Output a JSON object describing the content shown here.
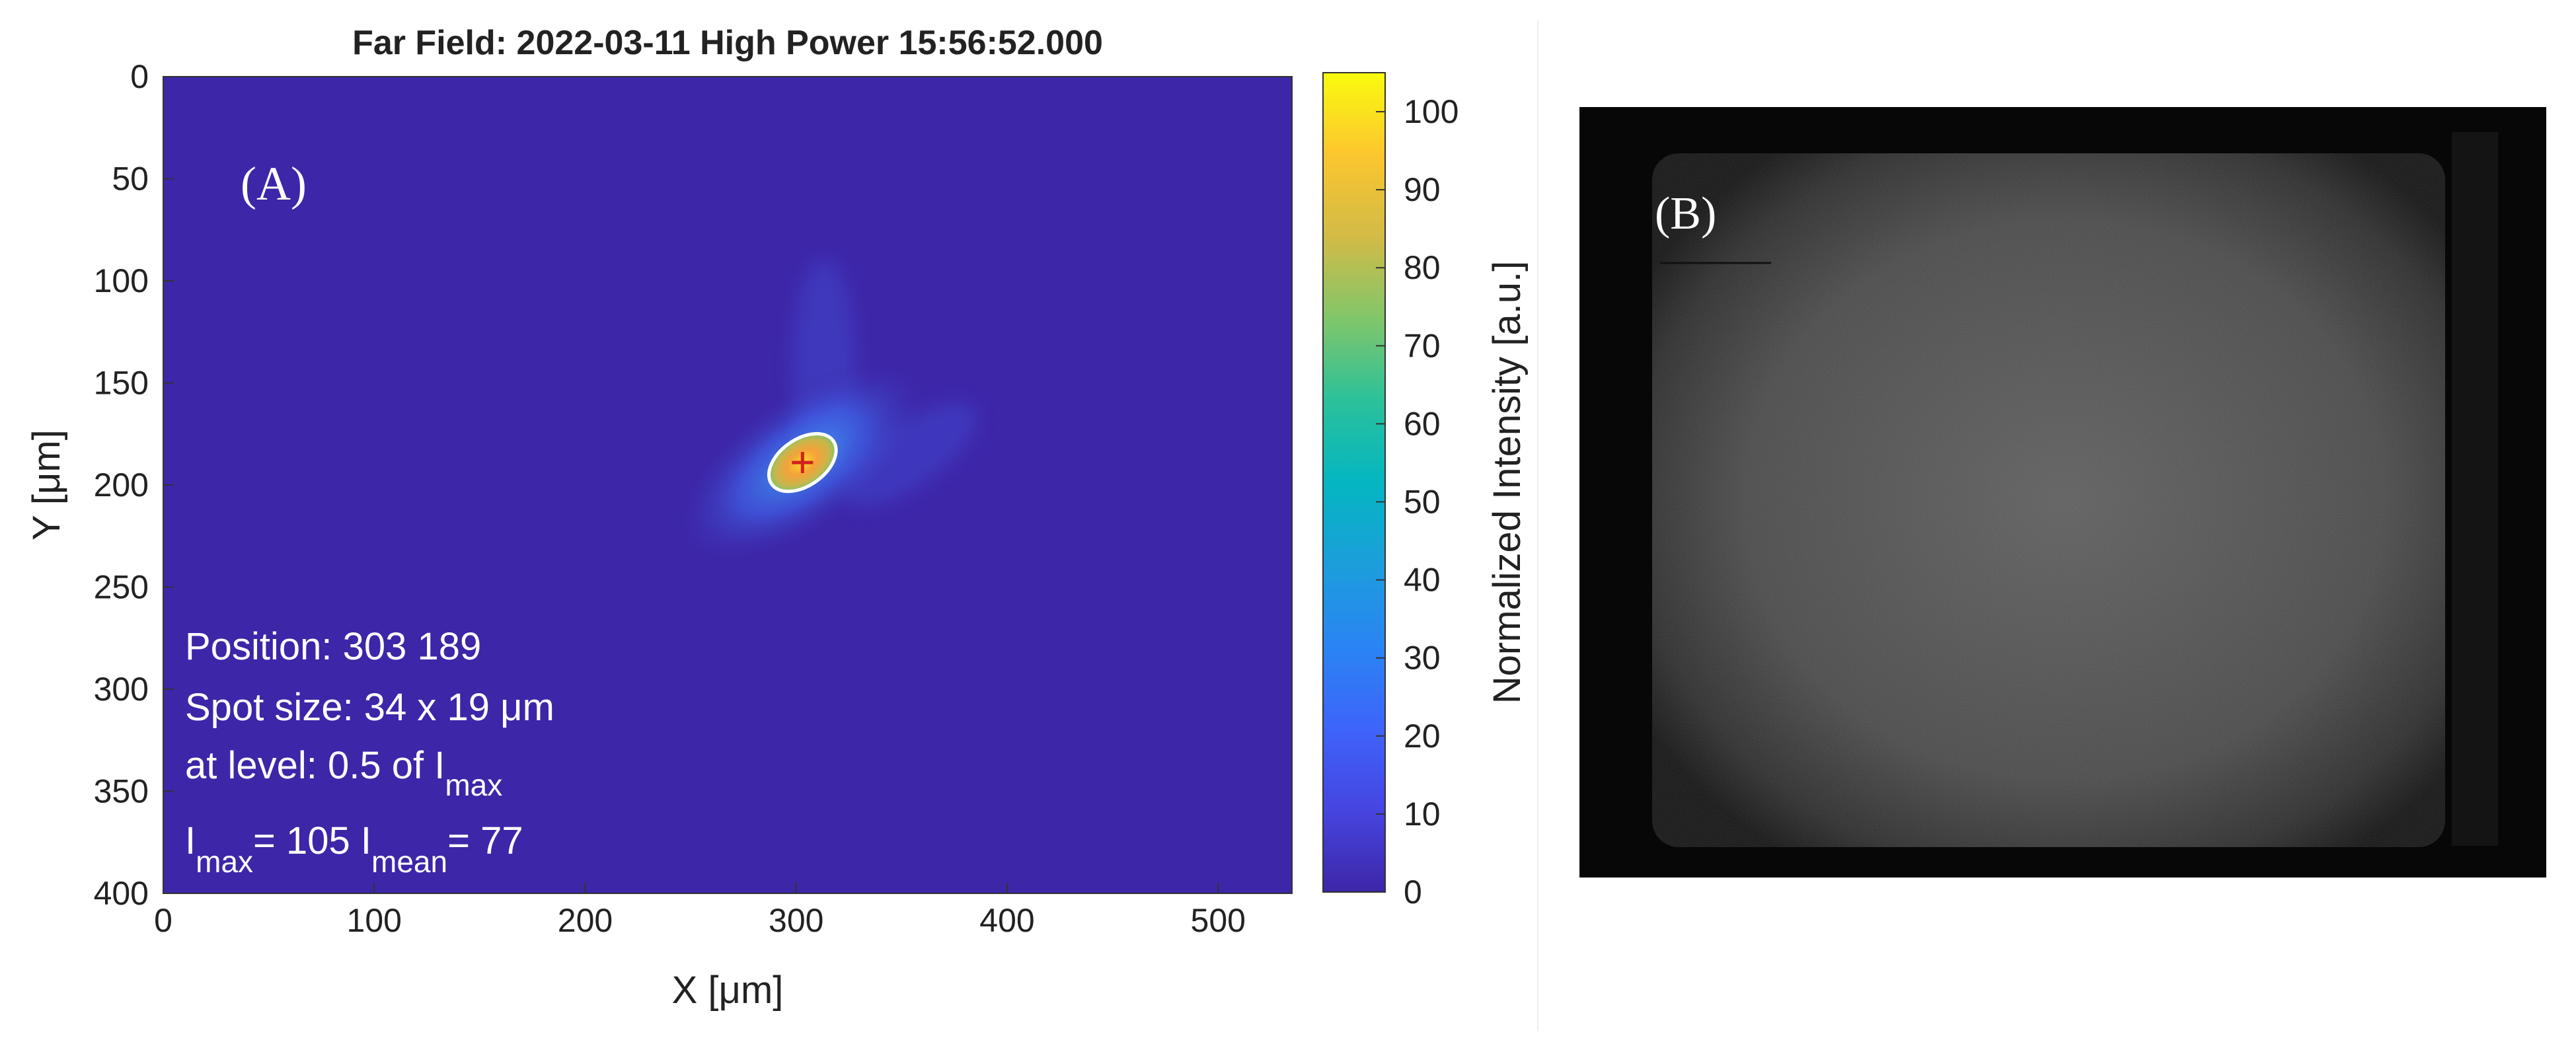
{
  "panel_a": {
    "letter": "(A)",
    "annotations": {
      "position": "Position: 303  189",
      "spot_size": "Spot size: 34 x 19 μm",
      "level_prefix": "at level: 0.5 of I",
      "level_sub": "max",
      "imax_I": "I",
      "imax_sub": "max",
      "imax_val": "= 105  I",
      "imean_sub": "mean",
      "imean_val": "= 77"
    }
  },
  "panel_b": {
    "letter": "(B)"
  },
  "chart_data": {
    "type": "heatmap",
    "title": "Far Field: 2022-03-11 High Power 15:56:52.000",
    "xlabel": "X [μm]",
    "ylabel": "Y [μm]",
    "xlim": [
      0,
      535
    ],
    "ylim": [
      400,
      0
    ],
    "xticks": [
      0,
      100,
      200,
      300,
      400,
      500
    ],
    "yticks": [
      0,
      50,
      100,
      150,
      200,
      250,
      300,
      350,
      400
    ],
    "colorbar": {
      "label": "Normalized Intensity [a.u.]",
      "range": [
        0,
        105
      ],
      "ticks": [
        0,
        10,
        20,
        30,
        40,
        50,
        60,
        70,
        80,
        90,
        100
      ],
      "colormap": "parula",
      "low_color": "#3d26a8",
      "high_color": "#f9fb0e"
    },
    "spot": {
      "center_x": 303,
      "center_y": 189,
      "size_x": 34,
      "size_y": 19,
      "peak_intensity": 105,
      "mean_intensity": 77,
      "level": 0.5
    },
    "grid": false
  }
}
